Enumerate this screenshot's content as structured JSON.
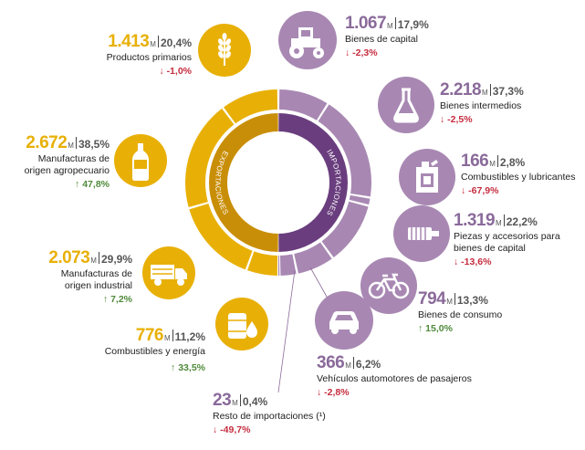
{
  "colors": {
    "exports": "#e8b007",
    "exports_dark": "#c98e08",
    "imports": "#a888b3",
    "imports_dark": "#6a3e7e",
    "negative": "#c62d3f",
    "positive": "#4f8a3a"
  },
  "center": {
    "exports_label": "EXPORTACIONES",
    "imports_label": "IMPORTACIONES"
  },
  "unit": "M",
  "chart_data": {
    "type": "pie",
    "series": [
      {
        "name": "EXPORTACIONES",
        "items": [
          {
            "label": "Productos primarios",
            "value": 1413,
            "value_text": "1.413",
            "share_text": "20,4%",
            "change_text": "-1,0%",
            "change": -1.0,
            "icon": "wheat-icon"
          },
          {
            "label": "Manufacturas de origen agropecuario",
            "value": 2672,
            "value_text": "2.672",
            "share_text": "38,5%",
            "change_text": "47,8%",
            "change": 47.8,
            "icon": "bottle-icon"
          },
          {
            "label": "Manufacturas de origen industrial",
            "value": 2073,
            "value_text": "2.073",
            "share_text": "29,9%",
            "change_text": "7,2%",
            "change": 7.2,
            "icon": "truck-icon"
          },
          {
            "label": "Combustibles y energía",
            "value": 776,
            "value_text": "776",
            "share_text": "11,2%",
            "change_text": "33,5%",
            "change": 33.5,
            "icon": "oil-barrel-icon"
          }
        ]
      },
      {
        "name": "IMPORTACIONES",
        "items": [
          {
            "label": "Bienes de capital",
            "value": 1067,
            "value_text": "1.067",
            "share_text": "17,9%",
            "change_text": "-2,3%",
            "change": -2.3,
            "icon": "tractor-icon"
          },
          {
            "label": "Bienes intermedios",
            "value": 2218,
            "value_text": "2.218",
            "share_text": "37,3%",
            "change_text": "-2,5%",
            "change": -2.5,
            "icon": "flask-icon"
          },
          {
            "label": "Combustibles y lubricantes",
            "value": 166,
            "value_text": "166",
            "share_text": "2,8%",
            "change_text": "-67,9%",
            "change": -67.9,
            "icon": "jerrycan-icon"
          },
          {
            "label": "Piezas y accesorios para bienes de capital",
            "value": 1319,
            "value_text": "1.319",
            "share_text": "22,2%",
            "change_text": "-13,6%",
            "change": -13.6,
            "icon": "machine-part-icon"
          },
          {
            "label": "Bienes de consumo",
            "value": 794,
            "value_text": "794",
            "share_text": "13,3%",
            "change_text": "15,0%",
            "change": 15.0,
            "icon": "bicycle-icon"
          },
          {
            "label": "Vehículos automotores de pasajeros",
            "value": 366,
            "value_text": "366",
            "share_text": "6,2%",
            "change_text": "-2,8%",
            "change": -2.8,
            "icon": "car-icon"
          },
          {
            "label": "Resto de importaciones (¹)",
            "value": 23,
            "value_text": "23",
            "share_text": "0,4%",
            "change_text": "-49,7%",
            "change": -49.7,
            "icon": "none"
          }
        ]
      }
    ]
  }
}
